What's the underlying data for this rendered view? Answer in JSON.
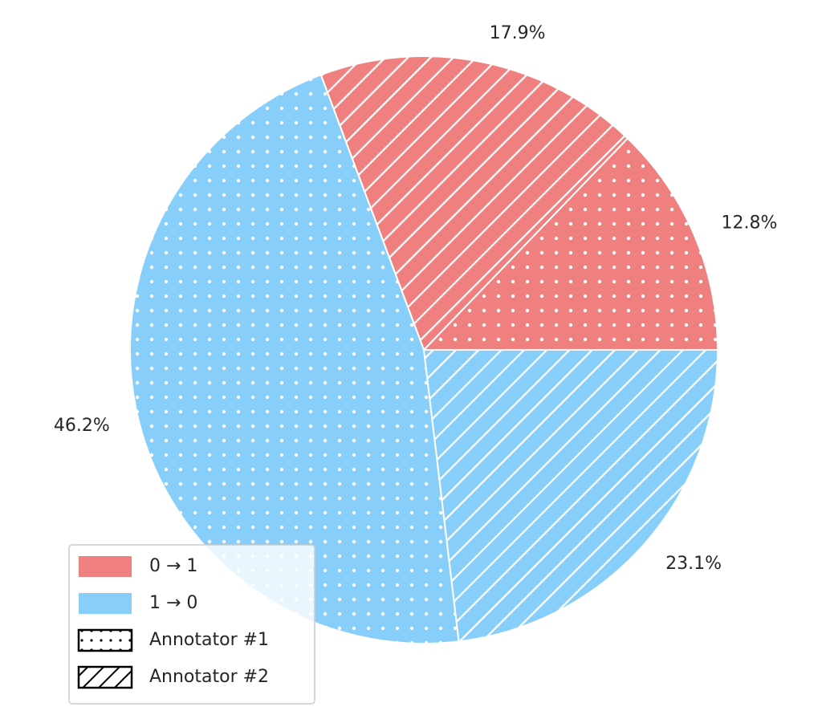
{
  "chart_data": {
    "type": "pie",
    "start_angle_deg": 0,
    "direction": "counterclockwise",
    "slices": [
      {
        "label": "12.8%",
        "value": 12.8,
        "color": "#F08080",
        "hatch": "dots",
        "group": "0 → 1",
        "annotator": "Annotator #1"
      },
      {
        "label": "17.9%",
        "value": 17.9,
        "color": "#F08080",
        "hatch": "diagonal",
        "group": "0 → 1",
        "annotator": "Annotator #2"
      },
      {
        "label": "46.2%",
        "value": 46.2,
        "color": "#87CEFA",
        "hatch": "dots",
        "group": "1 → 0",
        "annotator": "Annotator #1"
      },
      {
        "label": "23.1%",
        "value": 23.1,
        "color": "#87CEFA",
        "hatch": "diagonal",
        "group": "1 → 0",
        "annotator": "Annotator #2"
      }
    ],
    "legend": {
      "placement": "lower-left",
      "entries": [
        {
          "label": "0 → 1",
          "kind": "color",
          "color": "#F08080"
        },
        {
          "label": "1 → 0",
          "kind": "color",
          "color": "#87CEFA"
        },
        {
          "label": "Annotator #1",
          "kind": "hatch",
          "hatch": "dots"
        },
        {
          "label": "Annotator #2",
          "kind": "hatch",
          "hatch": "diagonal"
        }
      ]
    }
  }
}
